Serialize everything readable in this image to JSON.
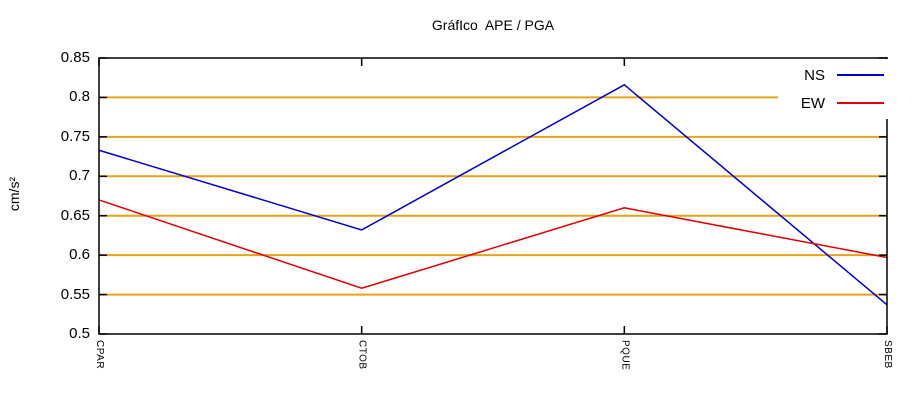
{
  "title": "GráfIco  APE / PGA",
  "chart_data": {
    "type": "line",
    "title": "GráfIco  APE / PGA",
    "xlabel": "",
    "ylabel": "cm/s²",
    "categories": [
      "CPAR",
      "CTOB",
      "PQUE",
      "SBEB"
    ],
    "series": [
      {
        "name": "NS",
        "color": "#0000cc",
        "values": [
          0.733,
          0.632,
          0.816,
          0.537
        ]
      },
      {
        "name": "EW",
        "color": "#dd0000",
        "values": [
          0.67,
          0.558,
          0.66,
          0.597
        ]
      }
    ],
    "ylim": [
      0.5,
      0.85
    ],
    "ytick_values": [
      0.85,
      0.8,
      0.75,
      0.7,
      0.65,
      0.6,
      0.55,
      0.5
    ],
    "ytick_labels": [
      "0.85",
      "0.8",
      "0.75",
      "0.7",
      "0.65",
      "0.6",
      "0.55",
      "0.5"
    ],
    "grid_values": [
      0.8,
      0.75,
      0.7,
      0.65,
      0.6,
      0.55
    ],
    "grid": "horizontal solid lines",
    "grid_color": "#e8a21a",
    "border_color": "#000000",
    "legend_position": "top-right inside plot, opaque white key box"
  }
}
